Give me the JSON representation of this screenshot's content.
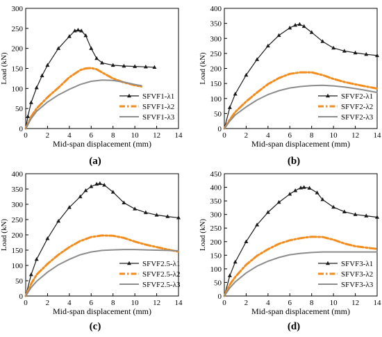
{
  "chart_data": [
    {
      "type": "line",
      "panel_label": "(a)",
      "xlabel": "Mid-span displacement (mm)",
      "ylabel": "Load (kN)",
      "xlim": [
        0,
        14
      ],
      "ylim": [
        0,
        300
      ],
      "xticks": [
        0,
        2,
        4,
        6,
        8,
        10,
        12,
        14
      ],
      "yticks": [
        0,
        50,
        100,
        150,
        200,
        250,
        300
      ],
      "legend_position": "bottom-right",
      "series": [
        {
          "name": "SFVF1-λ1",
          "style": "solid-triangle",
          "x": [
            0,
            0.2,
            0.5,
            1,
            1.5,
            2,
            3,
            4,
            4.5,
            4.8,
            5.1,
            5.5,
            6,
            6.5,
            7,
            8,
            9,
            10,
            11,
            11.8
          ],
          "y": [
            0,
            30,
            65,
            102,
            132,
            158,
            200,
            230,
            244,
            246,
            244,
            232,
            200,
            175,
            164,
            158,
            156,
            155,
            154,
            153
          ]
        },
        {
          "name": "SFVF1-λ2",
          "style": "dashdot",
          "x": [
            0,
            0.5,
            1,
            2,
            3,
            4,
            5,
            5.5,
            6,
            6.5,
            7,
            8,
            9,
            10,
            10.6
          ],
          "y": [
            0,
            30,
            50,
            78,
            102,
            128,
            146,
            150,
            151,
            148,
            140,
            125,
            115,
            108,
            105
          ]
        },
        {
          "name": "SFVF1-λ3",
          "style": "solid",
          "x": [
            0,
            0.5,
            1,
            2,
            3,
            4,
            5,
            6,
            7,
            8,
            9,
            10,
            10.6
          ],
          "y": [
            0,
            25,
            43,
            66,
            84,
            98,
            110,
            118,
            121,
            120,
            116,
            110,
            107
          ]
        }
      ]
    },
    {
      "type": "line",
      "panel_label": "(b)",
      "xlabel": "Mid-span displacement (mm)",
      "ylabel": "Load (kN)",
      "xlim": [
        0,
        14
      ],
      "ylim": [
        0,
        400
      ],
      "xticks": [
        0,
        2,
        4,
        6,
        8,
        10,
        12,
        14
      ],
      "yticks": [
        0,
        50,
        100,
        150,
        200,
        250,
        300,
        350,
        400
      ],
      "legend_position": "bottom-right",
      "series": [
        {
          "name": "SFVF2-λ1",
          "style": "solid-triangle",
          "x": [
            0,
            0.5,
            1,
            2,
            3,
            4,
            5,
            6,
            6.5,
            6.9,
            7.3,
            8,
            9,
            10,
            11,
            12,
            13,
            14
          ],
          "y": [
            0,
            70,
            115,
            178,
            230,
            275,
            310,
            335,
            344,
            347,
            340,
            320,
            290,
            268,
            258,
            252,
            247,
            243
          ]
        },
        {
          "name": "SFVF2-λ2",
          "style": "dashdot",
          "x": [
            0,
            0.5,
            1,
            2,
            3,
            4,
            5,
            6,
            7,
            8,
            9,
            10,
            11,
            12,
            13,
            14
          ],
          "y": [
            0,
            30,
            55,
            90,
            120,
            148,
            168,
            182,
            187,
            187,
            178,
            165,
            155,
            147,
            140,
            133
          ]
        },
        {
          "name": "SFVF2-λ3",
          "style": "solid",
          "x": [
            0,
            0.5,
            1,
            2,
            3,
            4,
            5,
            6,
            7,
            8,
            9,
            10,
            11,
            12,
            13,
            14
          ],
          "y": [
            0,
            25,
            45,
            72,
            95,
            113,
            126,
            135,
            140,
            143,
            144,
            142,
            138,
            133,
            127,
            120
          ]
        }
      ]
    },
    {
      "type": "line",
      "panel_label": "(c)",
      "xlabel": "Mid-span displacement (mm)",
      "ylabel": "Load (kN)",
      "xlim": [
        0,
        14
      ],
      "ylim": [
        0,
        400
      ],
      "xticks": [
        0,
        2,
        4,
        6,
        8,
        10,
        12,
        14
      ],
      "yticks": [
        0,
        50,
        100,
        150,
        200,
        250,
        300,
        350,
        400
      ],
      "legend_position": "bottom-right",
      "series": [
        {
          "name": "SFVF2.5-λ1",
          "style": "solid-triangle",
          "x": [
            0,
            0.5,
            1,
            2,
            3,
            4,
            5,
            5.5,
            6,
            6.5,
            6.8,
            7.2,
            8,
            9,
            10,
            11,
            12,
            13,
            14
          ],
          "y": [
            0,
            70,
            120,
            188,
            245,
            290,
            325,
            345,
            358,
            366,
            368,
            363,
            340,
            305,
            285,
            273,
            265,
            260,
            256
          ]
        },
        {
          "name": "SFVF2.5-λ2",
          "style": "dashdot",
          "x": [
            0,
            0.5,
            1,
            2,
            3,
            4,
            5,
            6,
            7,
            8,
            9,
            10,
            11,
            12,
            13,
            14
          ],
          "y": [
            0,
            40,
            70,
            105,
            135,
            160,
            180,
            193,
            198,
            197,
            190,
            178,
            168,
            160,
            152,
            145
          ]
        },
        {
          "name": "SFVF2.5-λ3",
          "style": "solid",
          "x": [
            0,
            0.5,
            1,
            2,
            3,
            4,
            5,
            6,
            7,
            8,
            9,
            10,
            11,
            12,
            13,
            14
          ],
          "y": [
            0,
            28,
            48,
            78,
            102,
            120,
            135,
            144,
            149,
            151,
            152,
            152,
            151,
            150,
            149,
            148
          ]
        }
      ]
    },
    {
      "type": "line",
      "panel_label": "(d)",
      "xlabel": "Mid-span displacement (mm)",
      "ylabel": "Load (kN)",
      "xlim": [
        0,
        14
      ],
      "ylim": [
        0,
        450
      ],
      "xticks": [
        0,
        2,
        4,
        6,
        8,
        10,
        12,
        14
      ],
      "yticks": [
        0,
        50,
        100,
        150,
        200,
        250,
        300,
        350,
        400,
        450
      ],
      "legend_position": "bottom-right",
      "series": [
        {
          "name": "SFVF3-λ1",
          "style": "solid-triangle",
          "x": [
            0,
            0.5,
            1,
            2,
            3,
            4,
            5,
            6,
            6.5,
            7,
            7.3,
            7.8,
            8.5,
            9,
            10,
            11,
            12,
            13,
            14
          ],
          "y": [
            0,
            75,
            125,
            200,
            262,
            308,
            345,
            375,
            388,
            398,
            400,
            397,
            380,
            355,
            327,
            310,
            300,
            295,
            290
          ]
        },
        {
          "name": "SFVF3-λ2",
          "style": "dashdot",
          "x": [
            0,
            0.5,
            1,
            2,
            3,
            4,
            5,
            6,
            7,
            8,
            9,
            10,
            11,
            12,
            13,
            14
          ],
          "y": [
            0,
            42,
            70,
            115,
            148,
            172,
            192,
            205,
            213,
            218,
            217,
            207,
            193,
            183,
            178,
            173
          ]
        },
        {
          "name": "SFVF3-λ3",
          "style": "solid",
          "x": [
            0,
            0.5,
            1,
            2,
            3,
            4,
            5,
            6,
            7,
            8,
            9,
            10,
            11,
            12,
            13,
            14
          ],
          "y": [
            0,
            30,
            52,
            85,
            110,
            128,
            142,
            152,
            157,
            160,
            162,
            162,
            162,
            162,
            162,
            162
          ]
        }
      ]
    }
  ],
  "colors": {
    "series_1": "#1a1a1a",
    "series_2": "#f28c1c",
    "series_3": "#8c8c8c"
  }
}
